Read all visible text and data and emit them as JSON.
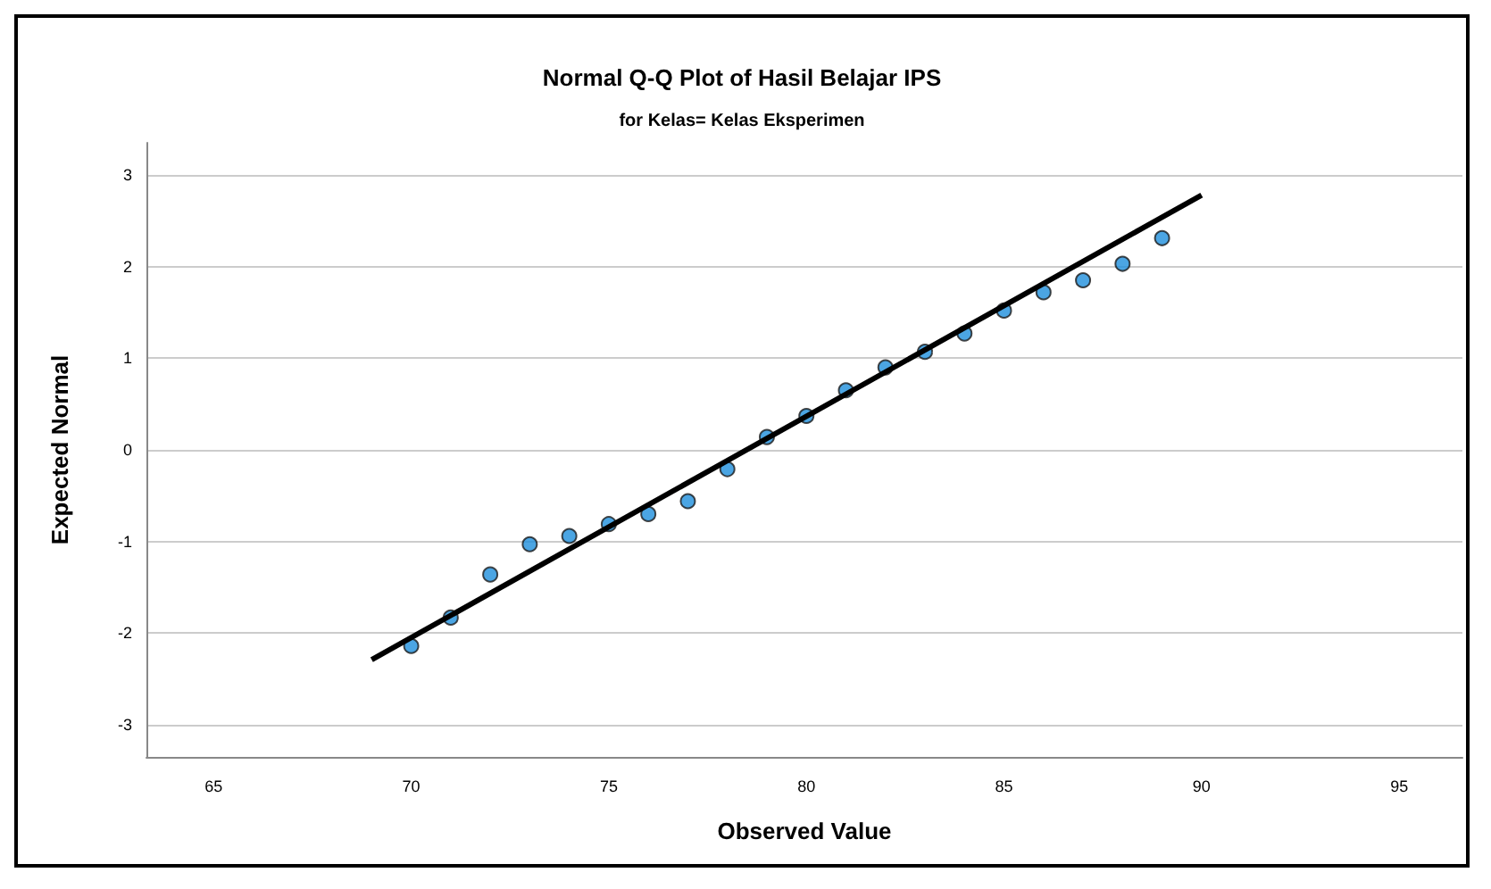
{
  "chart_data": {
    "type": "scatter",
    "title": "Normal Q-Q Plot of Hasil Belajar IPS",
    "subtitle": "for Kelas= Kelas Eksperimen",
    "xlabel": "Observed Value",
    "ylabel": "Expected Normal",
    "xlim": [
      63.3,
      96.6
    ],
    "xticks": [
      65,
      70,
      75,
      80,
      85,
      90,
      95
    ],
    "ylim": [
      -3.35,
      3.35
    ],
    "yticks": [
      -3,
      -2,
      -1,
      0,
      1,
      2,
      3
    ],
    "grid": "y",
    "marker": "circle",
    "series": [
      {
        "color": "#1e8fdc",
        "x": [
          70,
          71,
          72,
          73,
          74,
          75,
          76,
          77,
          78,
          79,
          80,
          81,
          82,
          83,
          84,
          85,
          86,
          87,
          88,
          89
        ],
        "values": [
          -2.14,
          -1.83,
          -1.36,
          -1.03,
          -0.94,
          -0.81,
          -0.7,
          -0.56,
          -0.21,
          0.14,
          0.37,
          0.65,
          0.9,
          1.07,
          1.27,
          1.52,
          1.72,
          1.85,
          2.03,
          2.31
        ]
      },
      {
        "type": "line",
        "color": "#000000",
        "x": [
          69,
          90
        ],
        "values": [
          -2.29,
          2.78
        ],
        "marker": "none",
        "line_style": "solid"
      }
    ]
  }
}
